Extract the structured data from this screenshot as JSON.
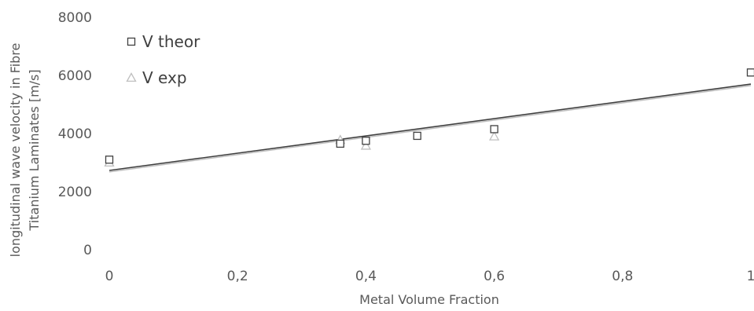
{
  "chart_data": {
    "type": "scatter",
    "xlabel": "Metal Volume Fraction",
    "ylabel_lines": [
      "longitudinal wave velocity in Fibre",
      "Titanium Laminates [m/s]"
    ],
    "xlim": [
      0,
      1
    ],
    "ylim": [
      0,
      8000
    ],
    "x_ticks": [
      0,
      0.2,
      0.4,
      0.6,
      0.8,
      1
    ],
    "x_tick_labels": [
      "0",
      "0,2",
      "0,4",
      "0,6",
      "0,8",
      "1"
    ],
    "y_ticks": [
      0,
      2000,
      4000,
      6000,
      8000
    ],
    "y_tick_labels": [
      "0",
      "2000",
      "4000",
      "6000",
      "8000"
    ],
    "grid": false,
    "legend_position": "top-left",
    "series": [
      {
        "name": "V theor",
        "marker": "square",
        "color": "#404040",
        "points": [
          {
            "x": 0,
            "y": 3100
          },
          {
            "x": 0.36,
            "y": 3650
          },
          {
            "x": 0.4,
            "y": 3750
          },
          {
            "x": 0.48,
            "y": 3920
          },
          {
            "x": 0.6,
            "y": 4150
          },
          {
            "x": 1,
            "y": 6100
          }
        ]
      },
      {
        "name": "V exp",
        "marker": "triangle",
        "color": "#bfbfbf",
        "points": [
          {
            "x": 0,
            "y": 3000
          },
          {
            "x": 0.36,
            "y": 3780
          },
          {
            "x": 0.4,
            "y": 3580
          },
          {
            "x": 0.6,
            "y": 3900
          }
        ]
      }
    ],
    "trendlines": [
      {
        "series": "V theor",
        "x": [
          0,
          1
        ],
        "y": [
          2730,
          5700
        ],
        "color": "#404040"
      },
      {
        "series": "V exp",
        "x": [
          0,
          1
        ],
        "y": [
          2680,
          5650
        ],
        "color": "#bfbfbf"
      }
    ]
  }
}
